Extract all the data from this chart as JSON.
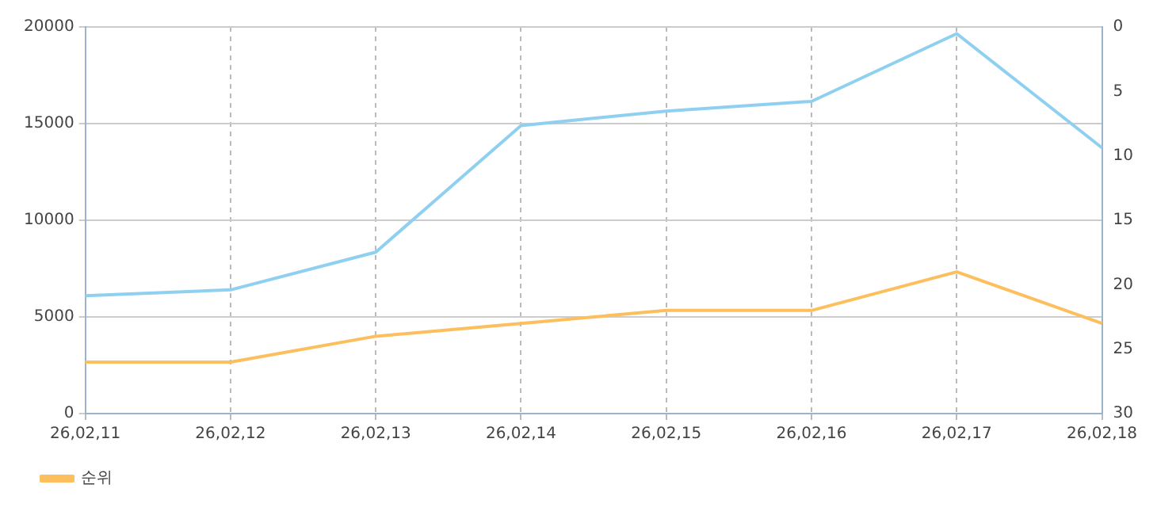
{
  "chart_data": {
    "type": "line",
    "categories": [
      "26,02,11",
      "26,02,12",
      "26,02,13",
      "26,02,14",
      "26,02,15",
      "26,02,16",
      "26,02,17",
      "26,02,18"
    ],
    "series": [
      {
        "color": "#8fd0f0",
        "values": [
          6100,
          6400,
          8350,
          14900,
          15650,
          16150,
          19650,
          13750
        ]
      },
      {
        "name": "순위",
        "color": "#fdbe5e",
        "axis": "y2",
        "values": [
          26,
          26,
          24,
          23,
          22,
          22,
          19,
          23
        ]
      }
    ],
    "ylim": [
      0,
      20000
    ],
    "yticks": [
      0,
      5000,
      10000,
      15000,
      20000
    ],
    "y2lim": [
      30,
      0
    ],
    "y2ticks": [
      0,
      5,
      10,
      15,
      20,
      25,
      30
    ],
    "grid": true,
    "legend": "bottom left",
    "marker": "none",
    "line_style": "solid"
  }
}
